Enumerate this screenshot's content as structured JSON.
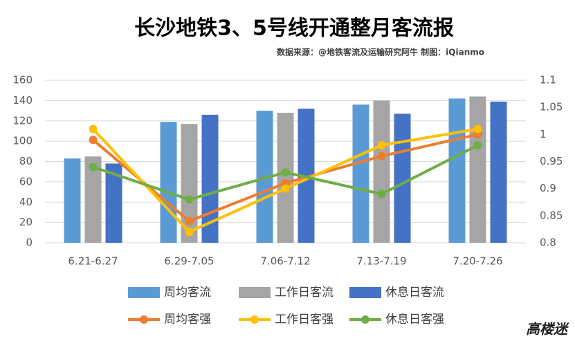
{
  "chart_data": {
    "type": "combo",
    "title": "长沙地铁3、5号线开通整月客流报",
    "subtitle": "数据来源：@地铁客流及运输研究阿牛 制图：iQianmo",
    "watermark": "高楼迷",
    "categories": [
      "6.21-6.27",
      "6.29-7.05",
      "7.06-7.12",
      "7.13-7.19",
      "7.20-7.26"
    ],
    "series": [
      {
        "name": "周均客流",
        "type": "bar",
        "color": "#5b9bd5",
        "values": [
          83,
          119,
          130,
          136,
          142
        ]
      },
      {
        "name": "工作日客流",
        "type": "bar",
        "color": "#a5a5a5",
        "values": [
          85,
          117,
          128,
          140,
          144
        ]
      },
      {
        "name": "休息日客流",
        "type": "bar",
        "color": "#4472c4",
        "values": [
          78,
          126,
          132,
          127,
          139
        ]
      },
      {
        "name": "周均客强",
        "type": "line",
        "axis": "y2",
        "color": "#ed7d31",
        "values": [
          0.99,
          0.84,
          0.91,
          0.96,
          1.0
        ]
      },
      {
        "name": "工作日客强",
        "type": "line",
        "axis": "y2",
        "color": "#ffc000",
        "values": [
          1.01,
          0.82,
          0.9,
          0.98,
          1.01
        ]
      },
      {
        "name": "休息日客强",
        "type": "line",
        "axis": "y2",
        "color": "#70ad47",
        "values": [
          0.94,
          0.88,
          0.93,
          0.89,
          0.98
        ]
      }
    ],
    "ylim": [
      0,
      160
    ],
    "yticks": [
      0,
      20,
      40,
      60,
      80,
      100,
      120,
      140,
      160
    ],
    "y2lim": [
      0.8,
      1.1
    ],
    "y2ticks": [
      0.8,
      0.85,
      0.9,
      0.95,
      1,
      1.05,
      1.1
    ],
    "grid": true
  }
}
